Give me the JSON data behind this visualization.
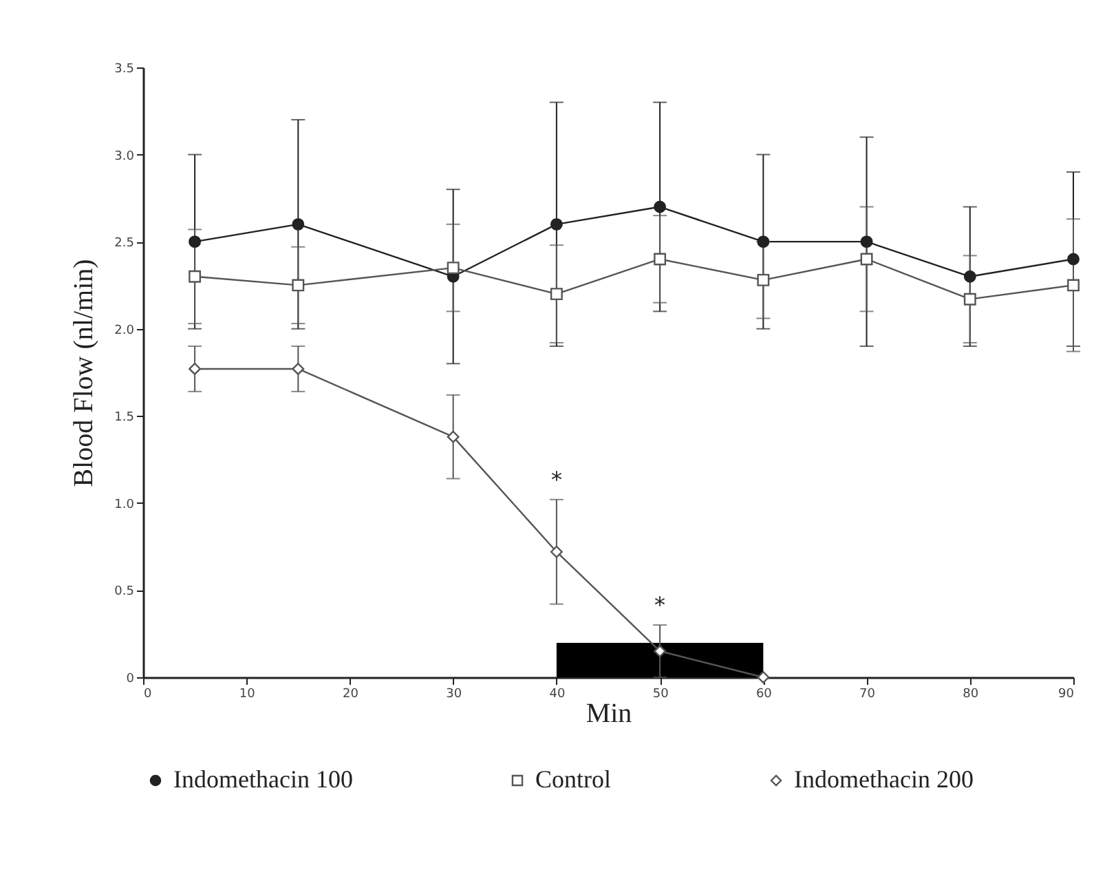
{
  "chart_data": {
    "type": "line",
    "xlabel": "Min",
    "ylabel": "Blood Flow (nl/min)",
    "x": [
      5,
      15,
      30,
      40,
      50,
      60,
      70,
      80,
      90
    ],
    "xlim": [
      0,
      90
    ],
    "xticks": [
      0,
      10,
      20,
      30,
      40,
      50,
      60,
      70,
      80,
      90
    ],
    "ylim": [
      0,
      3.5
    ],
    "yticks": [
      0,
      {
        "value": 0.5,
        "label": "0.5"
      },
      {
        "value": 1,
        "label": "1.0"
      },
      {
        "value": 1.5,
        "label": "1.5"
      },
      {
        "value": 2,
        "label": "2.0"
      },
      {
        "value": 2.5,
        "label": "2.5"
      },
      {
        "value": 3,
        "label": "3.0"
      },
      {
        "value": 3.5,
        "label": "3.5"
      }
    ],
    "grid": false,
    "legend": "bottom",
    "series": [
      {
        "name": "Indomethacin 100",
        "color": "#222222",
        "marker": "circle",
        "values": [
          2.5,
          2.6,
          2.3,
          2.6,
          2.7,
          2.5,
          2.5,
          2.3,
          2.4
        ],
        "errors": [
          0.5,
          0.6,
          0.5,
          0.7,
          0.6,
          0.5,
          0.6,
          0.4,
          0.5
        ]
      },
      {
        "name": "Control",
        "color": "#555555",
        "marker": "square",
        "values": [
          2.3,
          2.25,
          2.35,
          2.2,
          2.4,
          2.28,
          2.4,
          2.17,
          2.25
        ],
        "errors": [
          0.27,
          0.22,
          0.25,
          0.28,
          0.25,
          0.22,
          0.3,
          0.25,
          0.38
        ]
      },
      {
        "name": "Indomethacin 200",
        "color": "#555555",
        "marker": "diamond",
        "values": [
          1.77,
          1.77,
          1.38,
          0.72,
          0.15,
          0,
          null,
          null,
          null
        ],
        "errors": [
          0.13,
          0.13,
          0.24,
          0.3,
          0.15,
          null,
          null,
          null,
          null
        ]
      }
    ],
    "bands": [
      {
        "axis": "x",
        "from": 40,
        "to": 60,
        "color": "#000000"
      }
    ],
    "annotations": [
      {
        "text": "*",
        "x": 40,
        "y": 0.72
      },
      {
        "text": "*",
        "x": 50,
        "y": 0.15
      }
    ]
  }
}
